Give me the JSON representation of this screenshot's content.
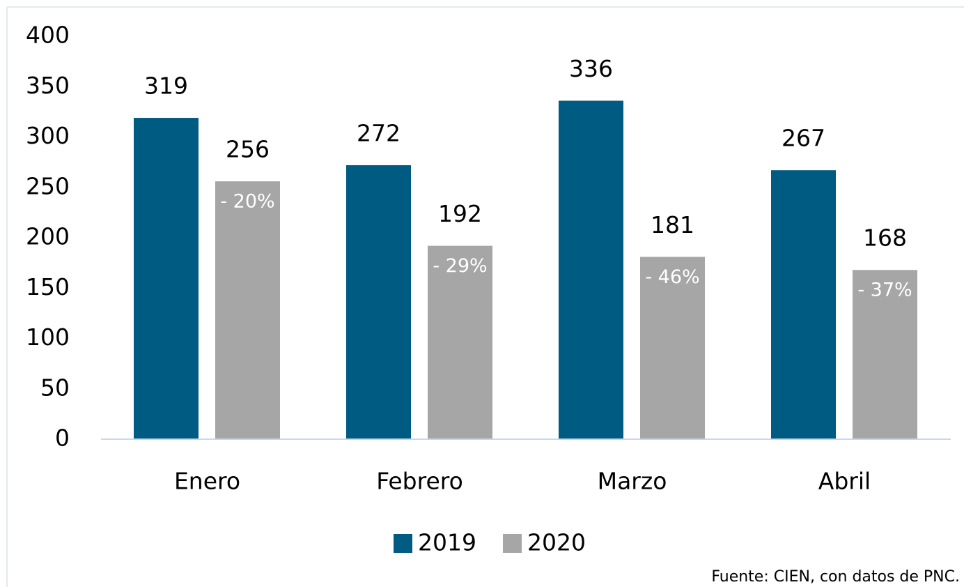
{
  "chart_data": {
    "type": "bar",
    "categories": [
      "Enero",
      "Febrero",
      "Marzo",
      "Abril"
    ],
    "series": [
      {
        "name": "2019",
        "color": "#005b82",
        "values": [
          319,
          272,
          336,
          267
        ]
      },
      {
        "name": "2020",
        "color": "#a6a6a6",
        "values": [
          256,
          192,
          181,
          168
        ]
      }
    ],
    "annotations": [
      "- 20%",
      "- 29%",
      "- 46%",
      "- 37%"
    ],
    "ylim": [
      0,
      400
    ],
    "yticks": [
      0,
      50,
      100,
      150,
      200,
      250,
      300,
      350,
      400
    ],
    "grid": false,
    "legend": "bottom",
    "source": "Fuente: CIEN, con datos de PNC."
  }
}
